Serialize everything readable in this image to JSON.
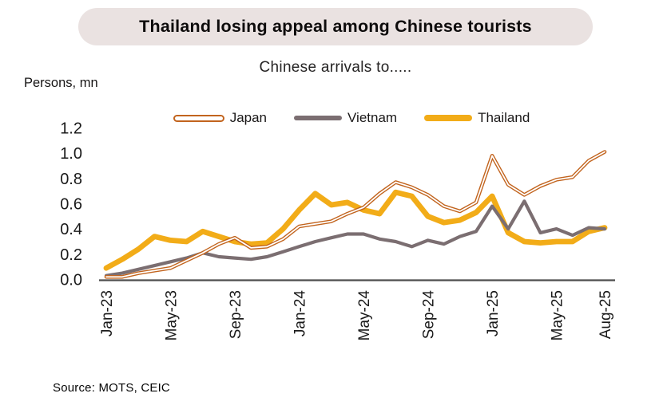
{
  "header": {
    "title": "Thailand losing appeal among Chinese tourists",
    "subtitle": "Chinese arrivals to.....",
    "units_label": "Persons, mn"
  },
  "source": "Source: MOTS, CEIC",
  "colors": {
    "banner_bg": "#EAE2E1",
    "axis_line": "#4D4D4D",
    "tick_text": "#1A1A1A",
    "japan": "#C2641E",
    "vietnam": "#7B6E71",
    "thailand": "#F2AC18"
  },
  "chart_data": {
    "type": "line",
    "title": "Chinese arrivals to.....",
    "ylabel": "Persons, mn",
    "ylim": [
      0,
      1.2
    ],
    "ytick_labels": [
      "0.0",
      "0.2",
      "0.4",
      "0.6",
      "0.8",
      "1.0",
      "1.2"
    ],
    "ytick_values": [
      0,
      0.2,
      0.4,
      0.6,
      0.8,
      1.0,
      1.2
    ],
    "grid": false,
    "legend_position": "top",
    "months": [
      "Jan-23",
      "Feb-23",
      "Mar-23",
      "Apr-23",
      "May-23",
      "Jun-23",
      "Jul-23",
      "Aug-23",
      "Sep-23",
      "Oct-23",
      "Nov-23",
      "Dec-23",
      "Jan-24",
      "Feb-24",
      "Mar-24",
      "Apr-24",
      "May-24",
      "Jun-24",
      "Jul-24",
      "Aug-24",
      "Sep-24",
      "Oct-24",
      "Nov-24",
      "Dec-24",
      "Jan-25",
      "Feb-25",
      "Mar-25",
      "Apr-25",
      "May-25",
      "Jun-25",
      "Jul-25",
      "Aug-25"
    ],
    "xtick_indices": [
      0,
      4,
      8,
      12,
      16,
      20,
      24,
      28,
      31
    ],
    "series": [
      {
        "name": "Japan",
        "color": "#C2641E",
        "style": "outline",
        "z": 3,
        "values": [
          0.02,
          0.02,
          0.05,
          0.07,
          0.09,
          0.15,
          0.21,
          0.28,
          0.33,
          0.25,
          0.26,
          0.32,
          0.42,
          0.44,
          0.46,
          0.52,
          0.57,
          0.68,
          0.77,
          0.73,
          0.67,
          0.58,
          0.54,
          0.61,
          0.98,
          0.75,
          0.67,
          0.74,
          0.79,
          0.81,
          0.94,
          1.01
        ]
      },
      {
        "name": "Vietnam",
        "color": "#7B6E71",
        "style": "solid",
        "z": 2,
        "values": [
          0.03,
          0.05,
          0.08,
          0.11,
          0.14,
          0.17,
          0.21,
          0.18,
          0.17,
          0.16,
          0.18,
          0.22,
          0.26,
          0.3,
          0.33,
          0.36,
          0.36,
          0.32,
          0.3,
          0.26,
          0.31,
          0.28,
          0.34,
          0.38,
          0.58,
          0.4,
          0.62,
          0.37,
          0.4,
          0.35,
          0.41,
          0.4
        ]
      },
      {
        "name": "Thailand",
        "color": "#F2AC18",
        "style": "thick",
        "z": 1,
        "values": [
          0.09,
          0.16,
          0.24,
          0.34,
          0.31,
          0.3,
          0.38,
          0.34,
          0.3,
          0.28,
          0.29,
          0.4,
          0.55,
          0.68,
          0.59,
          0.61,
          0.55,
          0.52,
          0.69,
          0.66,
          0.5,
          0.45,
          0.47,
          0.53,
          0.66,
          0.37,
          0.3,
          0.29,
          0.3,
          0.3,
          0.38,
          0.41
        ]
      }
    ]
  }
}
